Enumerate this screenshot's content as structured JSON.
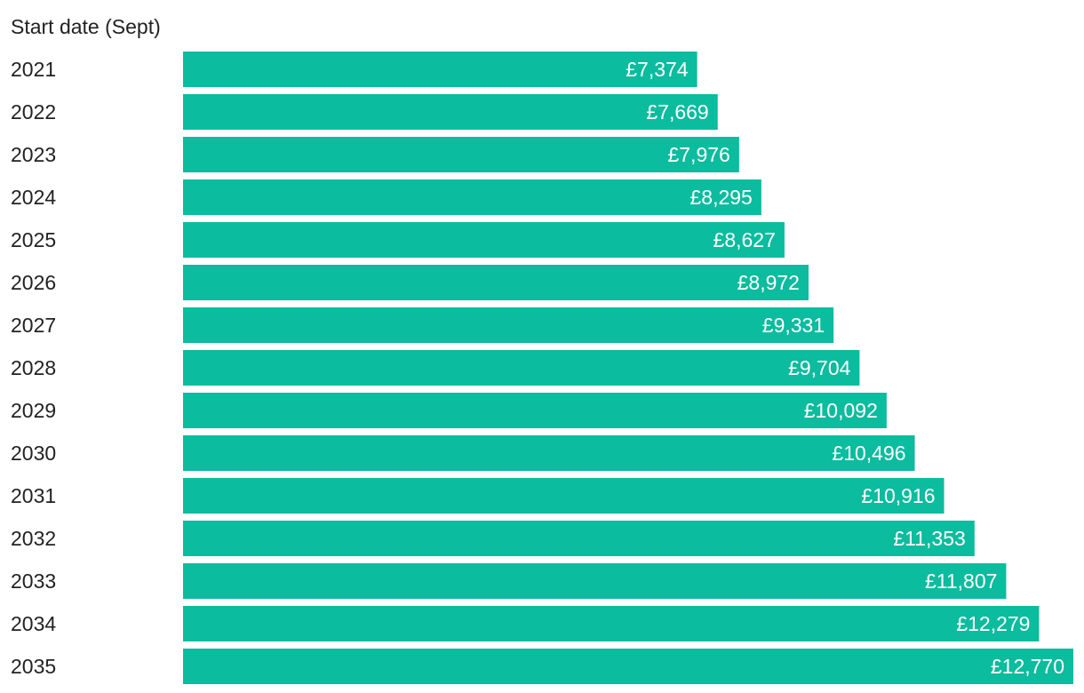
{
  "chart_data": {
    "type": "bar",
    "orientation": "horizontal",
    "category_header": "Start date (Sept)",
    "categories": [
      "2021",
      "2022",
      "2023",
      "2024",
      "2025",
      "2026",
      "2027",
      "2028",
      "2029",
      "2030",
      "2031",
      "2032",
      "2033",
      "2034",
      "2035"
    ],
    "values": [
      7374,
      7669,
      7976,
      8295,
      8627,
      8972,
      9331,
      9704,
      10092,
      10496,
      10916,
      11353,
      11807,
      12279,
      12770
    ],
    "value_labels": [
      "£7,374",
      "£7,669",
      "£7,976",
      "£8,295",
      "£8,627",
      "£8,972",
      "£9,331",
      "£9,704",
      "£10,092",
      "£10,496",
      "£10,916",
      "£11,353",
      "£11,807",
      "£12,279",
      "£12,770"
    ],
    "bar_color": "#0bbc9e",
    "grid": false,
    "legend": "none",
    "xlim": [
      0,
      12770
    ]
  }
}
